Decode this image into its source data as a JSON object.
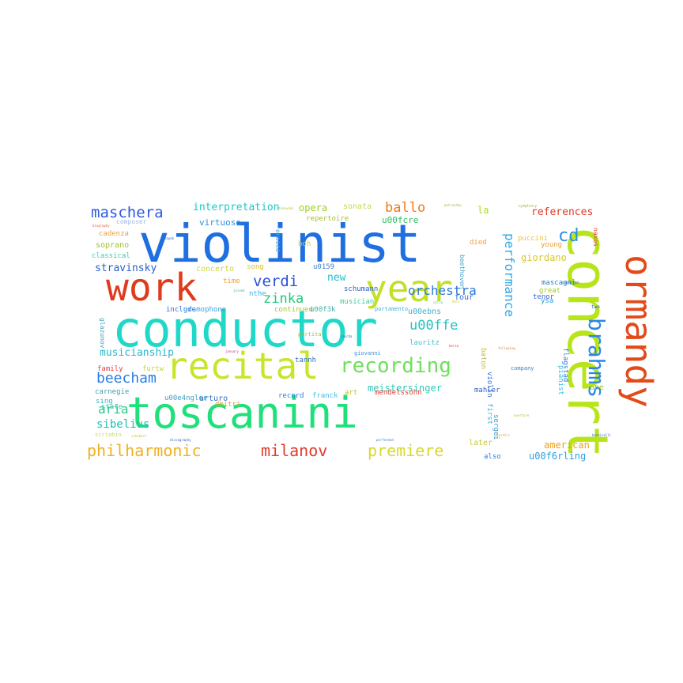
{
  "cloud_words": {
    "violinist": {
      "text": "violinist",
      "color": "#1f6fe0"
    },
    "toscanini": {
      "text": "toscanini",
      "color": "#1fe07a"
    },
    "conductor": {
      "text": "conductor",
      "color": "#20d8c8"
    },
    "concert": {
      "text": "concert",
      "color": "#b8e51a"
    },
    "recital": {
      "text": "recital",
      "color": "#c8e52a"
    },
    "year": {
      "text": "year",
      "color": "#c2e028"
    },
    "work": {
      "text": "work",
      "color": "#e03a1c"
    },
    "ormandy": {
      "text": "ormandy",
      "color": "#e24a1a"
    },
    "brahms": {
      "text": "brahms",
      "color": "#2a86e8"
    },
    "recording": {
      "text": "recording",
      "color": "#6ee05a"
    },
    "philharmonic": {
      "text": "philharmonic",
      "color": "#f0b020"
    },
    "milanov": {
      "text": "milanov",
      "color": "#e23a2a"
    },
    "premiere": {
      "text": "premiere",
      "color": "#d8d82a"
    },
    "maschera": {
      "text": "maschera",
      "color": "#2a5ae0"
    },
    "verdi": {
      "text": "verdi",
      "color": "#2a50d8"
    },
    "beecham": {
      "text": "beecham",
      "color": "#2a7ce6"
    },
    "zinka": {
      "text": "zinka",
      "color": "#22c87a"
    },
    "performance": {
      "text": "performance",
      "color": "#30a6e6"
    },
    "cd": {
      "text": "cd",
      "color": "#2a8fe0"
    },
    "ballo": {
      "text": "ballo",
      "color": "#f07a1a"
    },
    "orchestra": {
      "text": "orchestra",
      "color": "#2a78d8"
    },
    "aria": {
      "text": "aria",
      "color": "#2ac88a"
    },
    "sibelius": {
      "text": "sibelius",
      "color": "#1ec0b0"
    },
    "stravinsky": {
      "text": "stravinsky",
      "color": "#2a60c8"
    },
    "u00ffe": {
      "text": "u00ffe",
      "color": "#2ac0c0"
    },
    "interpretation": {
      "text": "interpretation",
      "color": "#20c8c8"
    },
    "opera": {
      "text": "opera",
      "color": "#a0d028"
    },
    "references": {
      "text": "references",
      "color": "#e23a2a"
    },
    "american": {
      "text": "american",
      "color": "#f0a020"
    },
    "u00f6rling": {
      "text": "u00f6rling",
      "color": "#2aa0e0"
    },
    "meistersinger": {
      "text": "meistersinger",
      "color": "#30c8b8"
    },
    "giordano": {
      "text": "giordano",
      "color": "#d8c82a"
    },
    "musicianship": {
      "text": "musicianship",
      "color": "#28b8d0"
    },
    "new": {
      "text": "new",
      "color": "#20c0d0"
    },
    "la": {
      "text": "la",
      "color": "#b0d82a"
    },
    "virtuoso": {
      "text": "virtuoso",
      "color": "#2a90e0"
    },
    "sonata": {
      "text": "sonata",
      "color": "#c8d848"
    },
    "u00fcre": {
      "text": "u00fcre",
      "color": "#2ac060"
    },
    "repertoire": {
      "text": "repertoire",
      "color": "#a8c030"
    },
    "composer": {
      "text": "composer",
      "color": "#a0b8e8"
    },
    "cadenza": {
      "text": "cadenza",
      "color": "#e8a040"
    },
    "soprano": {
      "text": "soprano",
      "color": "#a0c030"
    },
    "classical": {
      "text": "classical",
      "color": "#40c8b0"
    },
    "concerto": {
      "text": "concerto",
      "color": "#c8d840"
    },
    "song": {
      "text": "song",
      "color": "#e0c020"
    },
    "time": {
      "text": "time",
      "color": "#f0a030"
    },
    "nthe": {
      "text": "nthe",
      "color": "#40b0e0"
    },
    "schumann": {
      "text": "schumann",
      "color": "#3060c8"
    },
    "musician": {
      "text": "musician",
      "color": "#40c8a0"
    },
    "u00ebns": {
      "text": "u00ebns",
      "color": "#40b0d0"
    },
    "mascagni": {
      "text": "mascagni",
      "color": "#3080c8"
    },
    "puccini": {
      "text": "puccini",
      "color": "#f0c040"
    },
    "young": {
      "text": "young",
      "color": "#f0a030"
    },
    "great": {
      "text": "great",
      "color": "#a0c830"
    },
    "tenor": {
      "text": "tenor",
      "color": "#3060d8"
    },
    "ysa": {
      "text": "ysa",
      "color": "#20a0d0"
    },
    "died": {
      "text": "died",
      "color": "#f0a040"
    },
    "four": {
      "text": "four",
      "color": "#3070c8"
    },
    "family": {
      "text": "family",
      "color": "#e04040"
    },
    "state": {
      "text": "state",
      "color": "#40c8b0"
    },
    "sing": {
      "text": "sing",
      "color": "#40b0c0"
    },
    "carnegie": {
      "text": "carnegie",
      "color": "#40a0b0"
    },
    "furtw": {
      "text": "furtw",
      "color": "#c8d040"
    },
    "dmitri": {
      "text": "dmitri",
      "color": "#e0a030"
    },
    "tannh": {
      "text": "tannh",
      "color": "#3070c8"
    },
    "record": {
      "text": "record",
      "color": "#3080d8"
    },
    "franck": {
      "text": "franck",
      "color": "#40c0e0"
    },
    "art": {
      "text": "art",
      "color": "#c8c030"
    },
    "mendelssohn": {
      "text": "mendelssohn",
      "color": "#e04030"
    },
    "mahler": {
      "text": "mahler",
      "color": "#3060c8"
    },
    "one": {
      "text": "one",
      "color": "#a0c830"
    },
    "arturo": {
      "text": "arturo",
      "color": "#3070c8"
    },
    "include": {
      "text": "include",
      "color": "#3070d8"
    },
    "gramophone": {
      "text": "gramophone",
      "color": "#40a0e0"
    },
    "u00e4ngler": {
      "text": "u00e4ngler",
      "color": "#40a0c8"
    },
    "continued": {
      "text": "continued",
      "color": "#a0c830"
    },
    "u00f3k": {
      "text": "u00f3k",
      "color": "#40b0a0"
    },
    "boh": {
      "text": "boh",
      "color": "#c8d040"
    },
    "u0159": {
      "text": "u0159",
      "color": "#4080c8"
    },
    "lauritz": {
      "text": "lauritz",
      "color": "#40c0d0"
    },
    "first": {
      "text": "first",
      "color": "#40b0e0"
    },
    "sergei": {
      "text": "sergei",
      "color": "#40a0d0"
    },
    "later": {
      "text": "later",
      "color": "#c8c830"
    },
    "also": {
      "text": "also",
      "color": "#3080d8"
    },
    "beethoven": {
      "text": "beethoven",
      "color": "#40a0d0"
    },
    "violin": {
      "text": "violin",
      "color": "#3070d8"
    },
    "pianist": {
      "text": "pianist",
      "color": "#40c0e0"
    },
    "baton": {
      "text": "baton",
      "color": "#c8b830"
    },
    "flagstad": {
      "text": "flagstad",
      "color": "#3080d8"
    },
    "glazunov": {
      "text": "glazunov",
      "color": "#40a0c0"
    },
    "eroica": {
      "text": "eroica",
      "color": "#40b0e0"
    },
    "naxos": {
      "text": "naxos",
      "color": "#e04040"
    },
    "company": {
      "text": "company",
      "color": "#4080d0"
    },
    "scriabin": {
      "text": "scriabin",
      "color": "#c8d868"
    },
    "portamento": {
      "text": "portamento",
      "color": "#40b0e0"
    },
    "partita": {
      "text": "partita",
      "color": "#a0c040"
    },
    "giovanni": {
      "text": "giovanni",
      "color": "#4090d0"
    },
    "two": {
      "text": "two",
      "color": "#3060c8"
    },
    "symphony": {
      "text": "symphony",
      "color": "#b0c050"
    },
    "petrushka": {
      "text": "petrushka",
      "color": "#a0b840"
    },
    "biography": {
      "text": "biography",
      "color": "#e06040"
    },
    "haydn": {
      "text": "haydn",
      "color": "#3060c8"
    },
    "jascha": {
      "text": "jascha",
      "color": "#3060c8"
    },
    "discography": {
      "text": "discography",
      "color": "#3060c8"
    },
    "january": {
      "text": "january",
      "color": "#c04090"
    },
    "conducted": {
      "text": "conducted",
      "color": "#3060c8"
    },
    "operatic": {
      "text": "operatic",
      "color": "#e0a030"
    },
    "barbirolli": {
      "text": "barbirolli",
      "color": "#3060c8"
    },
    "following": {
      "text": "following",
      "color": "#e08040"
    },
    "performed": {
      "text": "performed",
      "color": "#3080d8"
    },
    "bersa": {
      "text": "bersa",
      "color": "#e04040"
    },
    "schubert": {
      "text": "schubert",
      "color": "#d0c030"
    },
    "overture": {
      "text": "overture",
      "color": "#a0c040"
    },
    "joined": {
      "text": "joined",
      "color": "#40b0a0"
    },
    "stokowski": {
      "text": "stokowski",
      "color": "#c8c030"
    },
    "cello": {
      "text": "cello",
      "color": "#40c0a0"
    },
    "hall": {
      "text": "hall",
      "color": "#c8c030"
    }
  }
}
